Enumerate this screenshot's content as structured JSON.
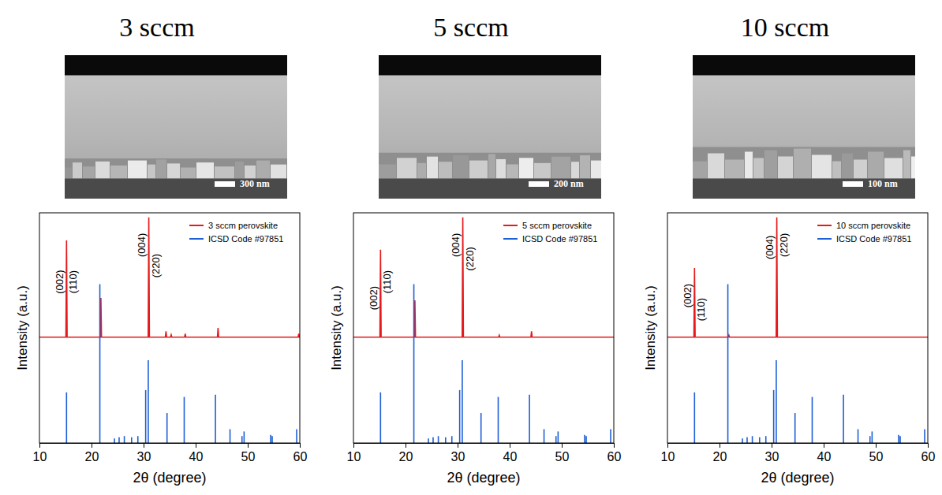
{
  "chart_data": [
    {
      "type": "line",
      "title": "3 sccm",
      "image_scale_bar": "300 nm",
      "x_label": "2θ (degree)",
      "y_label": "Intensity (a.u.)",
      "xlim": [
        10,
        60
      ],
      "xticks": [
        10,
        20,
        30,
        40,
        50,
        60
      ],
      "ylim": [
        0,
        100
      ],
      "tick_labels": "x",
      "legend": "upper right",
      "series": [
        {
          "name": "3 sccm perovskite",
          "type": "line",
          "color": "#e41a1c",
          "x": [
            10,
            15.08,
            15.2,
            15.32,
            21.68,
            21.8,
            21.92,
            30.88,
            31.0,
            31.12,
            34.18,
            34.3,
            34.42,
            35.18,
            35.3,
            35.42,
            37.88,
            38.0,
            38.12,
            44.18,
            44.3,
            44.42,
            59.68,
            59.8,
            59.92,
            60
          ],
          "values": [
            46,
            46,
            88,
            46,
            46,
            63,
            46,
            46,
            98,
            46,
            46,
            48.5,
            46,
            46,
            47,
            46,
            46,
            47.5,
            46,
            46,
            50,
            46,
            46,
            47.5,
            46,
            46
          ]
        },
        {
          "name": "ICSD Code #97851",
          "type": "stick",
          "color": "#1f5fd6",
          "x": [
            15.2,
            21.6,
            24.4,
            25.3,
            26.3,
            27.7,
            28.9,
            30.4,
            30.9,
            34.5,
            37.8,
            43.8,
            46.6,
            48.9,
            49.3,
            54.4,
            54.7,
            59.4
          ],
          "values": [
            22,
            69,
            2,
            2.5,
            3,
            2.5,
            3,
            23,
            36,
            13,
            20,
            21,
            6,
            3,
            5,
            3.5,
            3,
            6
          ]
        }
      ],
      "annotations": [
        {
          "text": "(002)",
          "x": 13.9,
          "y": 70
        },
        {
          "text": "(110)",
          "x": 16.5,
          "y": 70
        },
        {
          "text": "(004)",
          "x": 29.6,
          "y": 86
        },
        {
          "text": "(220)",
          "x": 32.4,
          "y": 77
        }
      ]
    },
    {
      "type": "line",
      "title": "5 sccm",
      "image_scale_bar": "200 nm",
      "x_label": "2θ (degree)",
      "y_label": "Intensity (a.u.)",
      "xlim": [
        10,
        60
      ],
      "xticks": [
        10,
        20,
        30,
        40,
        50,
        60
      ],
      "ylim": [
        0,
        100
      ],
      "tick_labels": "x",
      "legend": "upper right",
      "series": [
        {
          "name": "5 sccm perovskite",
          "type": "line",
          "color": "#e41a1c",
          "x": [
            10,
            15.08,
            15.2,
            15.32,
            21.68,
            21.8,
            21.92,
            30.88,
            31.0,
            31.12,
            37.88,
            38.0,
            38.12,
            44.08,
            44.2,
            44.32,
            60
          ],
          "values": [
            46,
            46,
            84,
            46,
            46,
            62,
            46,
            46,
            98,
            46,
            46,
            46.8,
            46,
            46,
            48.5,
            46,
            46
          ]
        },
        {
          "name": "ICSD Code #97851",
          "type": "stick",
          "color": "#1f5fd6",
          "x": [
            15.2,
            21.6,
            24.4,
            25.3,
            26.3,
            27.7,
            28.9,
            30.4,
            30.9,
            34.5,
            37.8,
            43.8,
            46.6,
            48.9,
            49.3,
            54.4,
            54.7,
            59.4
          ],
          "values": [
            22,
            69,
            2,
            2.5,
            3,
            2.5,
            3,
            23,
            36,
            13,
            20,
            21,
            6,
            3,
            5,
            3.5,
            3,
            6
          ]
        }
      ],
      "annotations": [
        {
          "text": "(002)",
          "x": 13.9,
          "y": 63
        },
        {
          "text": "(110)",
          "x": 16.5,
          "y": 70
        },
        {
          "text": "(004)",
          "x": 29.6,
          "y": 86
        },
        {
          "text": "(220)",
          "x": 32.4,
          "y": 80
        }
      ]
    },
    {
      "type": "line",
      "title": "10 sccm",
      "image_scale_bar": "100 nm",
      "x_label": "2θ (degree)",
      "y_label": "Intensity (a.u.)",
      "xlim": [
        10,
        60
      ],
      "xticks": [
        10,
        20,
        30,
        40,
        50,
        60
      ],
      "ylim": [
        0,
        100
      ],
      "tick_labels": "x",
      "legend": "upper right",
      "series": [
        {
          "name": "10 sccm perovskite",
          "type": "line",
          "color": "#e41a1c",
          "x": [
            10,
            15.08,
            15.2,
            15.32,
            21.68,
            21.8,
            21.92,
            30.88,
            31.0,
            31.12,
            60
          ],
          "values": [
            46,
            46,
            76,
            46,
            46,
            46.8,
            46,
            46,
            98,
            46,
            46
          ]
        },
        {
          "name": "ICSD Code #97851",
          "type": "stick",
          "color": "#1f5fd6",
          "x": [
            15.2,
            21.6,
            24.4,
            25.3,
            26.3,
            27.7,
            28.9,
            30.4,
            30.9,
            34.5,
            37.8,
            43.8,
            46.6,
            48.9,
            49.3,
            54.4,
            54.7,
            59.4
          ],
          "values": [
            22,
            69,
            2,
            2.5,
            3,
            2.5,
            3,
            23,
            36,
            13,
            20,
            21,
            6,
            3,
            5,
            3.5,
            3,
            6
          ]
        }
      ],
      "annotations": [
        {
          "text": "(002)",
          "x": 13.9,
          "y": 64
        },
        {
          "text": "(110)",
          "x": 16.5,
          "y": 58
        },
        {
          "text": "(004)",
          "x": 29.6,
          "y": 85
        },
        {
          "text": "(220)",
          "x": 32.4,
          "y": 86
        }
      ]
    }
  ]
}
